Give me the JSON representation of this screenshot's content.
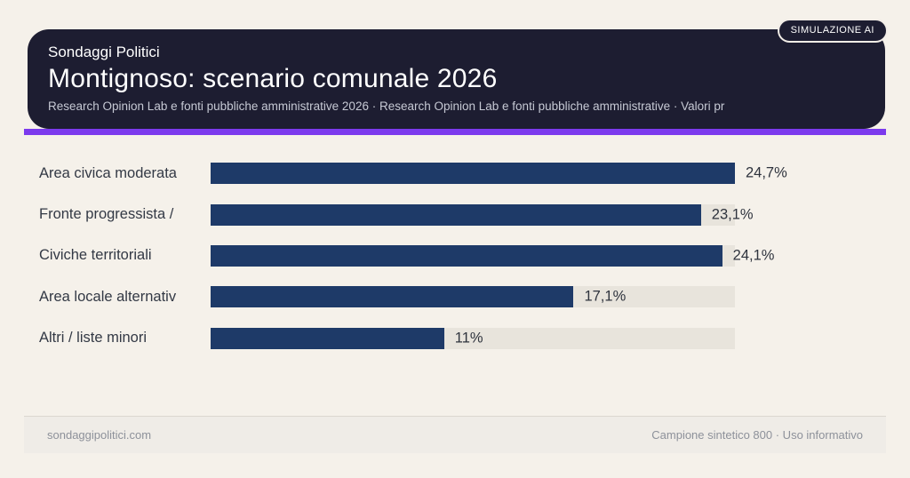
{
  "page": {
    "background_color": "#f5f1ea"
  },
  "header": {
    "kicker": "Sondaggi Politici",
    "title": "Montignoso: scenario comunale 2026",
    "subtitle": "Research Opinion Lab e fonti pubbliche amministrative 2026 · Research Opinion Lab e fonti pubbliche amministrative · Valori pr",
    "badge": "SIMULAZIONE AI",
    "card_color": "#1d1d31",
    "accent_color": "#7c3aed"
  },
  "chart_data": {
    "type": "bar",
    "orientation": "horizontal",
    "title": "Montignoso: scenario comunale 2026",
    "categories": [
      "Area civica moderata",
      "Fronte progressista /",
      "Civiche territoriali",
      "Area locale alternativ",
      "Altri / liste minori"
    ],
    "values": [
      24.7,
      23.1,
      24.1,
      17.1,
      11
    ],
    "value_labels": [
      "24,7%",
      "23,1%",
      "24,1%",
      "17,1%",
      "11%"
    ],
    "xlim": [
      0,
      24.7
    ],
    "bar_color": "#1e3a68",
    "track_color": "#e8e4dc",
    "grid": false,
    "legend": false
  },
  "footer": {
    "left": "sondaggipolitici.com",
    "right": "Campione sintetico 800 · Uso informativo"
  }
}
